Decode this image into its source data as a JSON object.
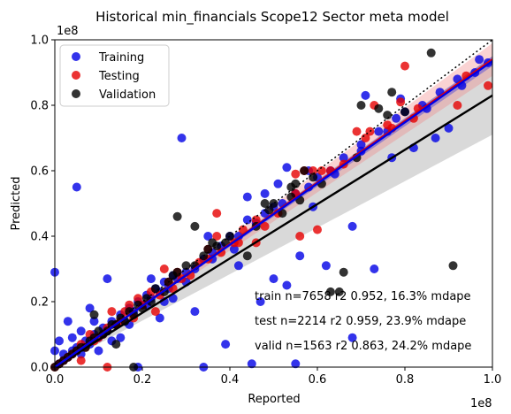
{
  "chart_data": {
    "type": "scatter",
    "title": "Historical min_financials Scope12 Sector meta model",
    "xlabel": "Reported",
    "ylabel": "Predicted",
    "x_offset_label": "1e8",
    "y_offset_label": "1e8",
    "xlim": [
      0,
      1.0
    ],
    "ylim": [
      0,
      1.0
    ],
    "xticks": [
      "0.0",
      "0.2",
      "0.4",
      "0.6",
      "0.8",
      "1.0"
    ],
    "yticks": [
      "0.0",
      "0.2",
      "0.4",
      "0.6",
      "0.8",
      "1.0"
    ],
    "legend_position": "upper-left",
    "grid": false,
    "identity_line": {
      "style": "dotted",
      "color": "#000000"
    },
    "annotations": [
      "train n=7658 r2 0.952, 16.3% mdape",
      "test n=2214 r2 0.959, 23.9% mdape",
      "valid n=1563 r2 0.863, 24.2% mdape"
    ],
    "series": [
      {
        "name": "Training",
        "color": "#0000e6",
        "fit": {
          "slope": 0.935,
          "intercept": 0.0,
          "band": 0.015,
          "band_color": "#2020e0"
        },
        "points": [
          [
            0.0,
            0.29
          ],
          [
            0.05,
            0.55
          ],
          [
            0.29,
            0.7
          ],
          [
            0.01,
            0.01
          ],
          [
            0.02,
            0.02
          ],
          [
            0.03,
            0.03
          ],
          [
            0.04,
            0.05
          ],
          [
            0.05,
            0.06
          ],
          [
            0.06,
            0.04
          ],
          [
            0.07,
            0.08
          ],
          [
            0.08,
            0.07
          ],
          [
            0.09,
            0.1
          ],
          [
            0.1,
            0.09
          ],
          [
            0.11,
            0.12
          ],
          [
            0.12,
            0.11
          ],
          [
            0.13,
            0.14
          ],
          [
            0.14,
            0.13
          ],
          [
            0.15,
            0.16
          ],
          [
            0.16,
            0.14
          ],
          [
            0.17,
            0.18
          ],
          [
            0.18,
            0.17
          ],
          [
            0.19,
            0.2
          ],
          [
            0.2,
            0.19
          ],
          [
            0.21,
            0.22
          ],
          [
            0.22,
            0.21
          ],
          [
            0.23,
            0.24
          ],
          [
            0.24,
            0.23
          ],
          [
            0.25,
            0.26
          ],
          [
            0.26,
            0.24
          ],
          [
            0.27,
            0.28
          ],
          [
            0.28,
            0.27
          ],
          [
            0.3,
            0.29
          ],
          [
            0.32,
            0.3
          ],
          [
            0.34,
            0.33
          ],
          [
            0.36,
            0.35
          ],
          [
            0.38,
            0.37
          ],
          [
            0.4,
            0.4
          ],
          [
            0.42,
            0.4
          ],
          [
            0.44,
            0.45
          ],
          [
            0.46,
            0.44
          ],
          [
            0.48,
            0.47
          ],
          [
            0.5,
            0.49
          ],
          [
            0.52,
            0.5
          ],
          [
            0.55,
            0.53
          ],
          [
            0.58,
            0.55
          ],
          [
            0.6,
            0.58
          ],
          [
            0.63,
            0.6
          ],
          [
            0.66,
            0.64
          ],
          [
            0.7,
            0.68
          ],
          [
            0.74,
            0.72
          ],
          [
            0.78,
            0.76
          ],
          [
            0.8,
            0.78
          ],
          [
            0.84,
            0.8
          ],
          [
            0.88,
            0.84
          ],
          [
            0.92,
            0.88
          ],
          [
            0.96,
            0.9
          ],
          [
            0.99,
            0.93
          ],
          [
            0.73,
            0.3
          ],
          [
            0.68,
            0.43
          ],
          [
            0.45,
            0.01
          ],
          [
            0.55,
            0.01
          ],
          [
            0.34,
            0.0
          ],
          [
            0.19,
            0.0
          ],
          [
            0.39,
            0.07
          ],
          [
            0.68,
            0.09
          ],
          [
            0.15,
            0.09
          ],
          [
            0.24,
            0.15
          ],
          [
            0.03,
            0.14
          ],
          [
            0.08,
            0.18
          ],
          [
            0.12,
            0.27
          ],
          [
            0.32,
            0.17
          ],
          [
            0.47,
            0.2
          ],
          [
            0.53,
            0.25
          ],
          [
            0.56,
            0.34
          ],
          [
            0.5,
            0.27
          ],
          [
            0.42,
            0.31
          ],
          [
            0.62,
            0.31
          ],
          [
            0.77,
            0.64
          ],
          [
            0.87,
            0.7
          ],
          [
            0.82,
            0.67
          ],
          [
            0.9,
            0.73
          ],
          [
            0.71,
            0.83
          ],
          [
            0.79,
            0.82
          ],
          [
            0.44,
            0.52
          ],
          [
            0.51,
            0.56
          ],
          [
            0.53,
            0.61
          ],
          [
            0.59,
            0.49
          ],
          [
            0.36,
            0.33
          ],
          [
            0.27,
            0.21
          ],
          [
            0.3,
            0.26
          ],
          [
            0.1,
            0.05
          ],
          [
            0.06,
            0.11
          ],
          [
            0.02,
            0.04
          ],
          [
            0.13,
            0.08
          ],
          [
            0.17,
            0.13
          ],
          [
            0.21,
            0.19
          ],
          [
            0.25,
            0.2
          ],
          [
            0.09,
            0.14
          ],
          [
            0.04,
            0.09
          ],
          [
            0.0,
            0.05
          ],
          [
            0.01,
            0.08
          ],
          [
            0.22,
            0.27
          ],
          [
            0.35,
            0.4
          ],
          [
            0.41,
            0.36
          ],
          [
            0.48,
            0.53
          ],
          [
            0.58,
            0.6
          ],
          [
            0.64,
            0.59
          ],
          [
            0.7,
            0.66
          ],
          [
            0.76,
            0.72
          ],
          [
            0.85,
            0.79
          ],
          [
            0.93,
            0.86
          ],
          [
            0.97,
            0.94
          ]
        ]
      },
      {
        "name": "Testing",
        "color": "#e60000",
        "fit": {
          "slope": 0.94,
          "intercept": 0.0,
          "band": 0.05,
          "band_color": "#f08080"
        },
        "points": [
          [
            0.8,
            0.92
          ],
          [
            0.92,
            0.8
          ],
          [
            0.99,
            0.86
          ],
          [
            0.94,
            0.89
          ],
          [
            0.79,
            0.81
          ],
          [
            0.61,
            0.6
          ],
          [
            0.55,
            0.53
          ],
          [
            0.48,
            0.43
          ],
          [
            0.43,
            0.42
          ],
          [
            0.42,
            0.38
          ],
          [
            0.37,
            0.4
          ],
          [
            0.38,
            0.35
          ],
          [
            0.35,
            0.33
          ],
          [
            0.33,
            0.32
          ],
          [
            0.31,
            0.28
          ],
          [
            0.29,
            0.27
          ],
          [
            0.27,
            0.24
          ],
          [
            0.26,
            0.26
          ],
          [
            0.24,
            0.22
          ],
          [
            0.22,
            0.23
          ],
          [
            0.2,
            0.19
          ],
          [
            0.19,
            0.21
          ],
          [
            0.18,
            0.15
          ],
          [
            0.16,
            0.17
          ],
          [
            0.15,
            0.14
          ],
          [
            0.14,
            0.13
          ],
          [
            0.12,
            0.12
          ],
          [
            0.11,
            0.1
          ],
          [
            0.1,
            0.09
          ],
          [
            0.09,
            0.08
          ],
          [
            0.08,
            0.1
          ],
          [
            0.07,
            0.06
          ],
          [
            0.06,
            0.07
          ],
          [
            0.05,
            0.05
          ],
          [
            0.04,
            0.04
          ],
          [
            0.03,
            0.03
          ],
          [
            0.02,
            0.02
          ],
          [
            0.01,
            0.01
          ],
          [
            0.0,
            0.0
          ],
          [
            0.23,
            0.17
          ],
          [
            0.25,
            0.3
          ],
          [
            0.37,
            0.47
          ],
          [
            0.55,
            0.59
          ],
          [
            0.57,
            0.6
          ],
          [
            0.59,
            0.6
          ],
          [
            0.63,
            0.6
          ],
          [
            0.66,
            0.62
          ],
          [
            0.71,
            0.7
          ],
          [
            0.76,
            0.74
          ],
          [
            0.82,
            0.76
          ],
          [
            0.83,
            0.79
          ],
          [
            0.73,
            0.8
          ],
          [
            0.56,
            0.4
          ],
          [
            0.6,
            0.42
          ],
          [
            0.46,
            0.45
          ],
          [
            0.51,
            0.47
          ],
          [
            0.41,
            0.38
          ],
          [
            0.35,
            0.36
          ],
          [
            0.28,
            0.29
          ],
          [
            0.17,
            0.19
          ],
          [
            0.13,
            0.17
          ],
          [
            0.06,
            0.02
          ],
          [
            0.12,
            0.0
          ],
          [
            0.46,
            0.38
          ],
          [
            0.69,
            0.72
          ],
          [
            0.72,
            0.72
          ],
          [
            0.77,
            0.73
          ]
        ]
      },
      {
        "name": "Validation",
        "color": "#000000",
        "fit": {
          "slope": 0.83,
          "intercept": 0.0,
          "band": 0.12,
          "band_color": "#c0c0c0"
        },
        "points": [
          [
            0.86,
            0.96
          ],
          [
            0.74,
            0.79
          ],
          [
            0.76,
            0.77
          ],
          [
            0.8,
            0.78
          ],
          [
            0.77,
            0.84
          ],
          [
            0.7,
            0.8
          ],
          [
            0.57,
            0.6
          ],
          [
            0.59,
            0.58
          ],
          [
            0.55,
            0.56
          ],
          [
            0.5,
            0.5
          ],
          [
            0.52,
            0.47
          ],
          [
            0.49,
            0.48
          ],
          [
            0.4,
            0.4
          ],
          [
            0.37,
            0.37
          ],
          [
            0.35,
            0.36
          ],
          [
            0.34,
            0.34
          ],
          [
            0.32,
            0.31
          ],
          [
            0.3,
            0.31
          ],
          [
            0.28,
            0.29
          ],
          [
            0.27,
            0.28
          ],
          [
            0.26,
            0.26
          ],
          [
            0.25,
            0.23
          ],
          [
            0.23,
            0.24
          ],
          [
            0.22,
            0.2
          ],
          [
            0.21,
            0.21
          ],
          [
            0.2,
            0.18
          ],
          [
            0.19,
            0.19
          ],
          [
            0.18,
            0.16
          ],
          [
            0.17,
            0.17
          ],
          [
            0.16,
            0.14
          ],
          [
            0.15,
            0.15
          ],
          [
            0.14,
            0.13
          ],
          [
            0.13,
            0.13
          ],
          [
            0.12,
            0.11
          ],
          [
            0.11,
            0.1
          ],
          [
            0.1,
            0.11
          ],
          [
            0.09,
            0.09
          ],
          [
            0.08,
            0.08
          ],
          [
            0.07,
            0.06
          ],
          [
            0.06,
            0.06
          ],
          [
            0.05,
            0.05
          ],
          [
            0.04,
            0.04
          ],
          [
            0.03,
            0.03
          ],
          [
            0.02,
            0.02
          ],
          [
            0.01,
            0.01
          ],
          [
            0.0,
            0.0
          ],
          [
            0.28,
            0.46
          ],
          [
            0.32,
            0.43
          ],
          [
            0.36,
            0.38
          ],
          [
            0.39,
            0.38
          ],
          [
            0.46,
            0.43
          ],
          [
            0.54,
            0.55
          ],
          [
            0.54,
            0.52
          ],
          [
            0.56,
            0.51
          ],
          [
            0.66,
            0.29
          ],
          [
            0.63,
            0.23
          ],
          [
            0.65,
            0.23
          ],
          [
            0.91,
            0.31
          ],
          [
            0.18,
            0.0
          ],
          [
            0.14,
            0.07
          ],
          [
            0.09,
            0.16
          ],
          [
            0.44,
            0.34
          ],
          [
            0.48,
            0.5
          ],
          [
            0.61,
            0.56
          ],
          [
            0.69,
            0.64
          ]
        ]
      }
    ]
  }
}
